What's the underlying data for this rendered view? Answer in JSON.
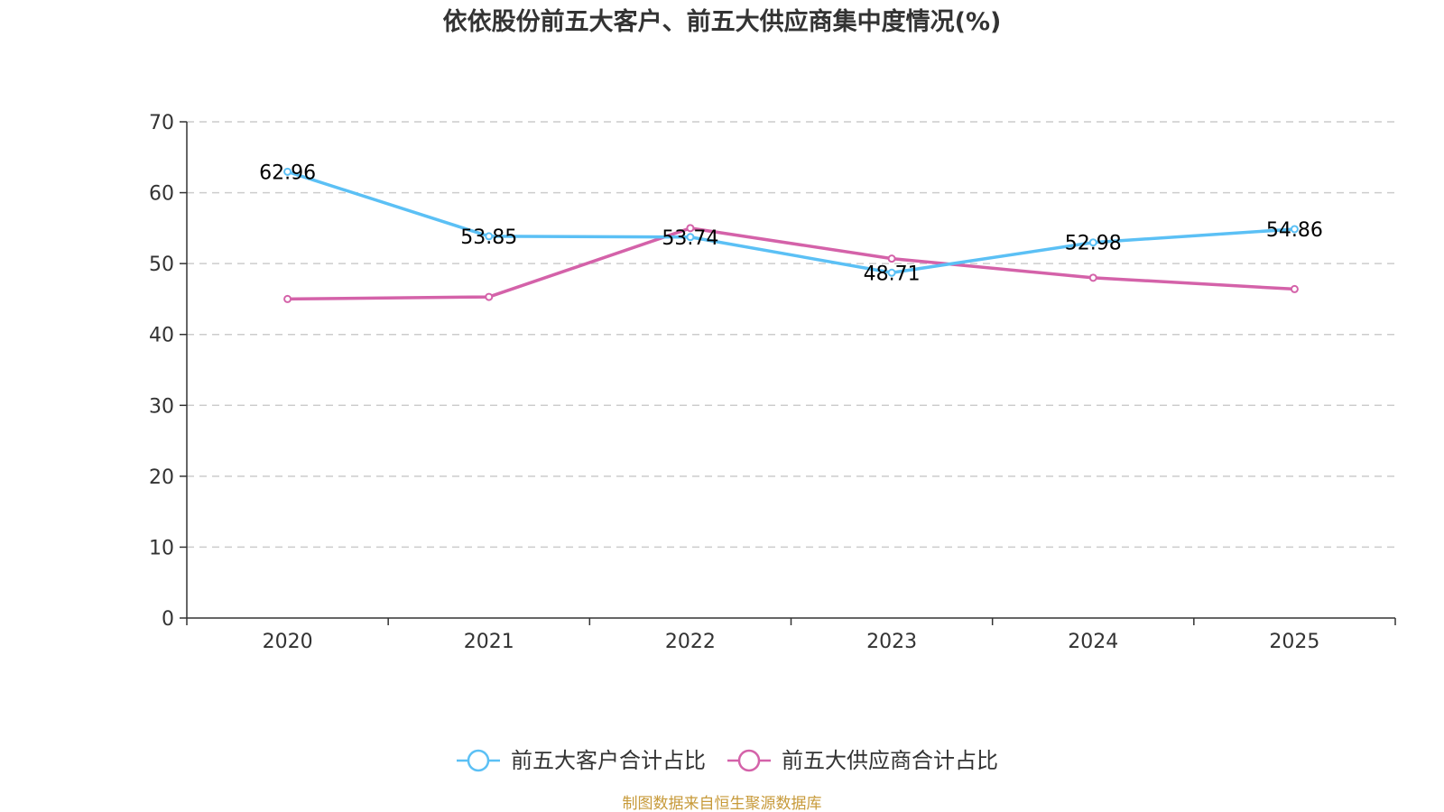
{
  "chart_data": {
    "type": "line",
    "title": "依依股份前五大客户、前五大供应商集中度情况(%)",
    "categories": [
      "2020",
      "2021",
      "2022",
      "2023",
      "2024",
      "2025"
    ],
    "ylim": [
      0,
      70
    ],
    "yticks": [
      0,
      10,
      20,
      30,
      40,
      50,
      60,
      70
    ],
    "grid": true,
    "legend": "bottom-center",
    "series": [
      {
        "name": "前五大客户合计占比",
        "color": "#5bc0f5",
        "values": [
          62.96,
          53.85,
          53.74,
          48.71,
          52.98,
          54.86
        ],
        "labels": [
          "62.96",
          "53.85",
          "53.74",
          "48.71",
          "52.98",
          "54.86"
        ]
      },
      {
        "name": "前五大供应商合计占比",
        "color": "#d462a9",
        "values": [
          45.0,
          45.3,
          55.0,
          50.7,
          48.0,
          46.4
        ],
        "labels": []
      }
    ],
    "source": "制图数据来自恒生聚源数据库"
  }
}
